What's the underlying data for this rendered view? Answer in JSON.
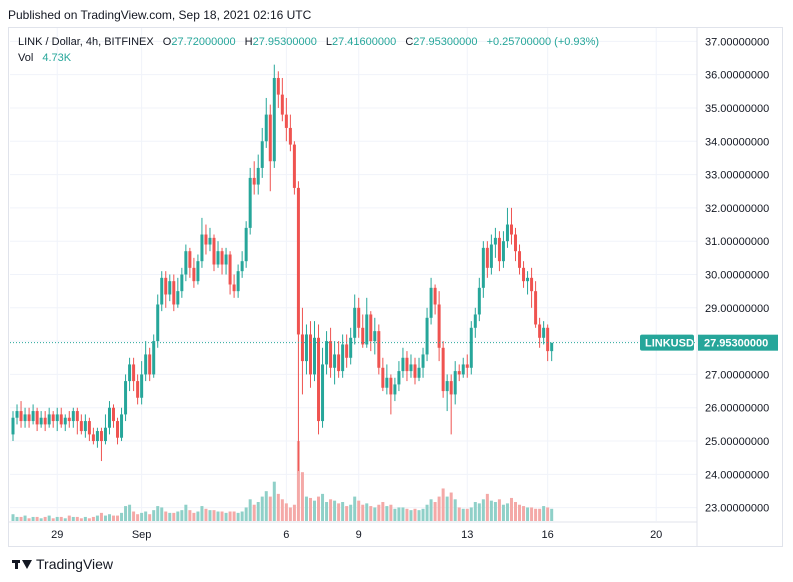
{
  "header": {
    "published": "Published on TradingView.com, Sep 18, 2021 02:16 UTC"
  },
  "legend": {
    "symbol": "LINK / Dollar, 4h, BITFINEX",
    "open_label": "O",
    "open": "27.72000000",
    "high_label": "H",
    "high": "27.95300000",
    "low_label": "L",
    "low": "27.41600000",
    "close_label": "C",
    "close": "27.95300000",
    "change": "+0.25700000 (+0.93%)",
    "vol_label": "Vol",
    "vol": "4.73K"
  },
  "price_tag": {
    "symbol": "LINKUSD",
    "price": "27.95300000"
  },
  "footer": {
    "brand": "TradingView"
  },
  "colors": {
    "up": "#26a69a",
    "down": "#ef5350",
    "up_vol": "#8fd0c8",
    "down_vol": "#f4a9a7",
    "grid": "#f0f3fa",
    "axis_text": "#131722"
  },
  "chart_data": {
    "type": "candlestick",
    "ylim": [
      22.6,
      37.4
    ],
    "y_ticks": [
      "37.00000000",
      "36.00000000",
      "35.00000000",
      "34.00000000",
      "33.00000000",
      "32.00000000",
      "31.00000000",
      "30.00000000",
      "29.00000000",
      "28.00000000",
      "27.00000000",
      "26.00000000",
      "25.00000000",
      "24.00000000",
      "23.00000000"
    ],
    "y_tick_values": [
      37,
      36,
      35,
      34,
      33,
      32,
      31,
      30,
      29,
      28,
      27,
      26,
      25,
      24,
      23
    ],
    "x_ticks": [
      {
        "label": "29",
        "index": 11
      },
      {
        "label": "Sep",
        "index": 32
      },
      {
        "label": "6",
        "index": 68
      },
      {
        "label": "9",
        "index": 86
      },
      {
        "label": "13",
        "index": 113
      },
      {
        "label": "16",
        "index": 133
      },
      {
        "label": "20",
        "index": 160
      }
    ],
    "last_price": 27.953,
    "candles": [
      [
        25.2,
        25.7,
        25.0,
        25.9
      ],
      [
        25.7,
        25.9,
        25.5,
        26.1
      ],
      [
        25.9,
        25.6,
        25.4,
        26.2
      ],
      [
        25.6,
        25.8,
        25.4,
        26.0
      ],
      [
        25.8,
        25.6,
        25.4,
        26.0
      ],
      [
        25.6,
        25.9,
        25.5,
        26.1
      ],
      [
        25.9,
        25.5,
        25.3,
        26.0
      ],
      [
        25.5,
        25.7,
        25.4,
        25.9
      ],
      [
        25.7,
        25.5,
        25.3,
        25.9
      ],
      [
        25.5,
        25.8,
        25.4,
        26.0
      ],
      [
        25.8,
        25.6,
        25.4,
        25.9
      ],
      [
        25.6,
        25.8,
        25.3,
        26.0
      ],
      [
        25.8,
        25.5,
        25.4,
        26.0
      ],
      [
        25.5,
        25.7,
        25.3,
        25.8
      ],
      [
        25.7,
        25.6,
        25.4,
        25.9
      ],
      [
        25.6,
        25.9,
        25.4,
        26.0
      ],
      [
        25.9,
        25.6,
        25.2,
        26.0
      ],
      [
        25.6,
        25.3,
        25.2,
        25.8
      ],
      [
        25.3,
        25.6,
        25.1,
        25.8
      ],
      [
        25.6,
        25.2,
        25.0,
        25.7
      ],
      [
        25.2,
        25.0,
        24.9,
        25.4
      ],
      [
        25.0,
        25.3,
        24.8,
        25.4
      ],
      [
        25.3,
        25.0,
        24.4,
        25.4
      ],
      [
        25.0,
        25.4,
        24.9,
        25.8
      ],
      [
        25.4,
        26.0,
        25.2,
        26.2
      ],
      [
        26.0,
        25.6,
        25.4,
        26.1
      ],
      [
        25.6,
        25.1,
        24.9,
        25.7
      ],
      [
        25.1,
        25.8,
        25.0,
        26.0
      ],
      [
        25.8,
        26.8,
        25.6,
        27.0
      ],
      [
        26.8,
        27.3,
        26.5,
        27.5
      ],
      [
        27.3,
        26.8,
        26.5,
        27.5
      ],
      [
        26.8,
        26.3,
        26.1,
        27.0
      ],
      [
        26.3,
        27.0,
        26.1,
        27.4
      ],
      [
        27.0,
        27.6,
        26.8,
        28.0
      ],
      [
        27.6,
        27.0,
        26.8,
        27.8
      ],
      [
        27.0,
        28.0,
        26.9,
        28.2
      ],
      [
        28.0,
        29.1,
        27.8,
        29.4
      ],
      [
        29.1,
        29.9,
        28.9,
        30.1
      ],
      [
        29.9,
        29.4,
        29.0,
        30.1
      ],
      [
        29.4,
        29.8,
        29.2,
        30.0
      ],
      [
        29.8,
        29.1,
        28.9,
        30.0
      ],
      [
        29.1,
        29.5,
        29.0,
        29.9
      ],
      [
        29.5,
        30.0,
        29.3,
        30.2
      ],
      [
        30.0,
        30.7,
        29.8,
        30.9
      ],
      [
        30.7,
        30.2,
        29.9,
        30.8
      ],
      [
        30.2,
        29.8,
        29.6,
        30.5
      ],
      [
        29.8,
        30.4,
        29.7,
        30.6
      ],
      [
        30.4,
        31.2,
        30.2,
        31.7
      ],
      [
        31.2,
        30.9,
        30.6,
        31.5
      ],
      [
        30.9,
        31.1,
        30.7,
        31.4
      ],
      [
        31.1,
        30.3,
        30.1,
        31.2
      ],
      [
        30.3,
        30.7,
        30.2,
        31.0
      ],
      [
        30.7,
        30.3,
        30.0,
        30.8
      ],
      [
        30.3,
        30.6,
        30.0,
        30.8
      ],
      [
        30.6,
        29.7,
        29.4,
        30.7
      ],
      [
        29.7,
        29.5,
        29.3,
        30.0
      ],
      [
        29.5,
        30.1,
        29.3,
        30.3
      ],
      [
        30.1,
        30.4,
        29.9,
        30.7
      ],
      [
        30.4,
        31.4,
        30.2,
        31.6
      ],
      [
        31.4,
        32.9,
        31.2,
        33.2
      ],
      [
        32.9,
        32.7,
        32.4,
        33.4
      ],
      [
        32.7,
        33.2,
        32.4,
        33.6
      ],
      [
        33.2,
        34.0,
        32.9,
        34.4
      ],
      [
        34.0,
        34.8,
        33.8,
        35.3
      ],
      [
        34.8,
        33.4,
        32.5,
        35.1
      ],
      [
        33.4,
        35.9,
        33.2,
        36.3
      ],
      [
        35.9,
        35.4,
        35.0,
        36.1
      ],
      [
        35.4,
        34.8,
        34.6,
        35.9
      ],
      [
        34.8,
        34.4,
        34.0,
        35.3
      ],
      [
        34.4,
        33.9,
        33.7,
        34.8
      ],
      [
        33.9,
        32.6,
        32.4,
        34.0
      ],
      [
        32.6,
        28.2,
        24.1,
        32.8
      ],
      [
        28.2,
        27.4,
        26.4,
        29.0
      ],
      [
        27.4,
        28.2,
        27.0,
        28.5
      ],
      [
        28.2,
        27.0,
        26.6,
        28.6
      ],
      [
        27.0,
        28.1,
        26.8,
        28.6
      ],
      [
        28.1,
        25.6,
        25.2,
        28.5
      ],
      [
        25.6,
        27.3,
        25.4,
        27.8
      ],
      [
        27.3,
        28.0,
        27.0,
        28.3
      ],
      [
        28.0,
        27.2,
        26.9,
        28.4
      ],
      [
        27.2,
        27.6,
        26.7,
        28.0
      ],
      [
        27.6,
        27.1,
        26.9,
        28.0
      ],
      [
        27.1,
        27.9,
        26.9,
        28.2
      ],
      [
        27.9,
        27.5,
        27.2,
        28.2
      ],
      [
        27.5,
        28.1,
        27.3,
        28.4
      ],
      [
        28.1,
        29.0,
        27.9,
        29.4
      ],
      [
        29.0,
        28.4,
        28.1,
        29.3
      ],
      [
        28.4,
        27.9,
        27.8,
        28.8
      ],
      [
        27.9,
        28.8,
        27.8,
        29.3
      ],
      [
        28.8,
        28.0,
        27.7,
        28.9
      ],
      [
        28.0,
        28.3,
        27.6,
        28.7
      ],
      [
        28.3,
        27.2,
        27.0,
        28.5
      ],
      [
        27.2,
        26.6,
        26.5,
        27.5
      ],
      [
        26.6,
        26.9,
        26.4,
        27.3
      ],
      [
        26.9,
        26.4,
        25.8,
        27.0
      ],
      [
        26.4,
        26.7,
        26.2,
        26.9
      ],
      [
        26.7,
        27.1,
        26.5,
        27.4
      ],
      [
        27.1,
        27.5,
        26.9,
        27.8
      ],
      [
        27.5,
        27.1,
        26.8,
        27.7
      ],
      [
        27.1,
        27.3,
        26.9,
        27.6
      ],
      [
        27.3,
        26.9,
        26.7,
        27.5
      ],
      [
        26.9,
        27.2,
        26.8,
        27.5
      ],
      [
        27.2,
        27.6,
        26.9,
        27.8
      ],
      [
        27.6,
        28.7,
        27.4,
        29.0
      ],
      [
        28.7,
        29.6,
        28.5,
        29.9
      ],
      [
        29.6,
        29.1,
        28.8,
        29.7
      ],
      [
        29.1,
        27.8,
        27.4,
        29.5
      ],
      [
        27.8,
        26.5,
        26.3,
        28.0
      ],
      [
        26.5,
        26.8,
        25.9,
        27.0
      ],
      [
        26.8,
        26.4,
        25.2,
        27.0
      ],
      [
        26.4,
        27.1,
        26.1,
        27.4
      ],
      [
        27.1,
        27.0,
        26.8,
        27.3
      ],
      [
        27.0,
        27.3,
        26.9,
        27.5
      ],
      [
        27.3,
        27.2,
        26.9,
        27.6
      ],
      [
        27.2,
        28.4,
        27.0,
        28.6
      ],
      [
        28.4,
        28.8,
        28.1,
        29.0
      ],
      [
        28.8,
        29.6,
        28.6,
        29.9
      ],
      [
        29.6,
        30.8,
        29.3,
        31.0
      ],
      [
        30.8,
        30.2,
        29.9,
        31.0
      ],
      [
        30.2,
        30.9,
        30.0,
        31.2
      ],
      [
        30.9,
        31.1,
        30.5,
        31.4
      ],
      [
        31.1,
        30.4,
        30.1,
        31.3
      ],
      [
        30.4,
        31.0,
        30.2,
        31.3
      ],
      [
        31.0,
        31.5,
        30.8,
        32.0
      ],
      [
        31.5,
        31.2,
        30.9,
        32.0
      ],
      [
        31.2,
        30.7,
        30.4,
        31.4
      ],
      [
        30.7,
        30.2,
        30.0,
        30.9
      ],
      [
        30.2,
        29.8,
        29.6,
        30.4
      ],
      [
        29.8,
        29.9,
        29.4,
        30.1
      ],
      [
        29.9,
        29.5,
        29.0,
        30.2
      ],
      [
        29.5,
        28.5,
        28.4,
        29.8
      ],
      [
        28.5,
        28.1,
        27.8,
        28.7
      ],
      [
        28.1,
        28.4,
        27.9,
        28.6
      ],
      [
        28.4,
        27.7,
        27.4,
        28.5
      ],
      [
        27.7,
        27.95,
        27.4,
        27.95
      ]
    ],
    "volumes": [
      0.25,
      0.15,
      0.15,
      0.2,
      0.1,
      0.15,
      0.15,
      0.1,
      0.15,
      0.2,
      0.1,
      0.15,
      0.15,
      0.1,
      0.2,
      0.15,
      0.15,
      0.1,
      0.15,
      0.1,
      0.15,
      0.2,
      0.3,
      0.2,
      0.25,
      0.2,
      0.2,
      0.3,
      0.55,
      0.6,
      0.35,
      0.25,
      0.3,
      0.35,
      0.25,
      0.4,
      0.55,
      0.5,
      0.35,
      0.3,
      0.3,
      0.35,
      0.4,
      0.6,
      0.4,
      0.3,
      0.35,
      0.55,
      0.45,
      0.4,
      0.4,
      0.35,
      0.35,
      0.3,
      0.35,
      0.35,
      0.3,
      0.35,
      0.5,
      0.8,
      0.6,
      0.7,
      0.9,
      1.1,
      0.9,
      1.45,
      1.0,
      0.8,
      0.65,
      0.5,
      0.6,
      2.95,
      1.8,
      0.9,
      0.85,
      0.75,
      0.9,
      1.0,
      0.7,
      0.8,
      0.75,
      0.65,
      0.7,
      0.55,
      0.6,
      0.9,
      0.75,
      0.6,
      0.65,
      0.55,
      0.5,
      0.6,
      0.7,
      0.55,
      0.6,
      0.45,
      0.5,
      0.5,
      0.45,
      0.4,
      0.45,
      0.4,
      0.45,
      0.6,
      0.8,
      0.7,
      0.9,
      1.2,
      0.9,
      1.05,
      0.8,
      0.5,
      0.45,
      0.45,
      0.5,
      0.7,
      0.65,
      0.8,
      1.0,
      0.75,
      0.7,
      0.8,
      0.6,
      0.65,
      0.85,
      0.7,
      0.6,
      0.55,
      0.5,
      0.5,
      0.45,
      0.45,
      0.55,
      0.5,
      0.45,
      0.3
    ]
  }
}
